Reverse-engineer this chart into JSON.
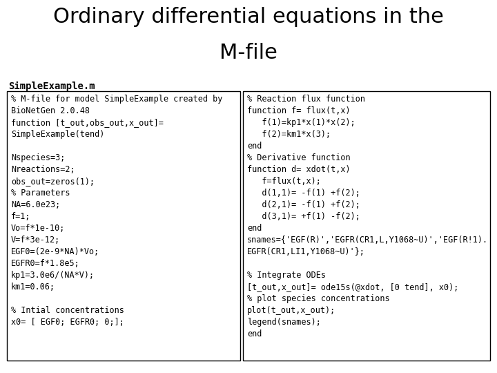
{
  "title_line1": "Ordinary differential equations in the",
  "title_line2": "M-file",
  "subtitle": "SimpleExample.m",
  "left_box_lines": [
    "% M-file for model SimpleExample created by",
    "BioNetGen 2.0.48",
    "function [t_out,obs_out,x_out]=",
    "SimpleExample(tend)",
    "",
    "Nspecies=3;",
    "Nreactions=2;",
    "obs_out=zeros(1);",
    "% Parameters",
    "NA=6.0e23;",
    "f=1;",
    "Vo=f*1e-10;",
    "V=f*3e-12;",
    "EGF0=(2e-9*NA)*Vo;",
    "EGFR0=f*1.8e5;",
    "kp1=3.0e6/(NA*V);",
    "km1=0.06;",
    "",
    "% Intial concentrations",
    "x0= [ EGF0; EGFR0; 0;];"
  ],
  "right_box_lines": [
    "% Reaction flux function",
    "function f= flux(t,x)",
    "   f(1)=kp1*x(1)*x(2);",
    "   f(2)=km1*x(3);",
    "end",
    "% Derivative function",
    "function d= xdot(t,x)",
    "   f=flux(t,x);",
    "   d(1,1)= -f(1) +f(2);",
    "   d(2,1)= -f(1) +f(2);",
    "   d(3,1)= +f(1) -f(2);",
    "end",
    "snames={'EGF(R)','EGFR(CR1,L,Y1068~U)','EGF(R!1).",
    "EGFR(CR1,LI1,Y1068~U)'};",
    "",
    "% Integrate ODEs",
    "[t_out,x_out]= ode15s(@xdot, [0 tend], x0);",
    "% plot species concentrations",
    "plot(t_out,x_out);",
    "legend(snames);",
    "end"
  ],
  "background_color": "#ffffff",
  "box_color": "#000000",
  "text_color": "#000000",
  "title_fontsize": 22,
  "subtitle_fontsize": 10,
  "code_fontsize": 8.5
}
